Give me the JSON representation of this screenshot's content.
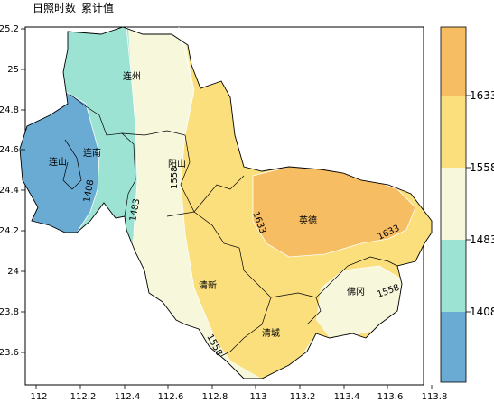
{
  "title": "日照时数_累计值",
  "axes": {
    "x_ticks": [
      "112",
      "112.2",
      "112.4",
      "112.6",
      "112.8",
      "113",
      "113.2",
      "113.4",
      "113.6",
      "113.8"
    ],
    "y_ticks": [
      "25.2",
      "25",
      "24.8",
      "24.6",
      "24.4",
      "24.2",
      "24",
      "23.8",
      "23.6"
    ]
  },
  "colorbar": {
    "labels": [
      "1633",
      "1558",
      "1483",
      "1408"
    ],
    "colors": [
      "#f7bd63",
      "#fadf7c",
      "#f6f7db",
      "#9de3d3",
      "#6aabd4"
    ]
  },
  "places": [
    "连州",
    "连南",
    "连山",
    "阳山",
    "英德",
    "清新",
    "佛冈",
    "清城"
  ],
  "contour_labels": [
    "1408",
    "1483",
    "1558",
    "1633",
    "1633",
    "1558",
    "1558"
  ],
  "colors": {
    "lightblue": "#9de3d3",
    "blue": "#6aabd4",
    "cream": "#f6f7db",
    "yellow": "#fadf7c",
    "orange": "#f7bd63",
    "boundary": "#000000"
  }
}
